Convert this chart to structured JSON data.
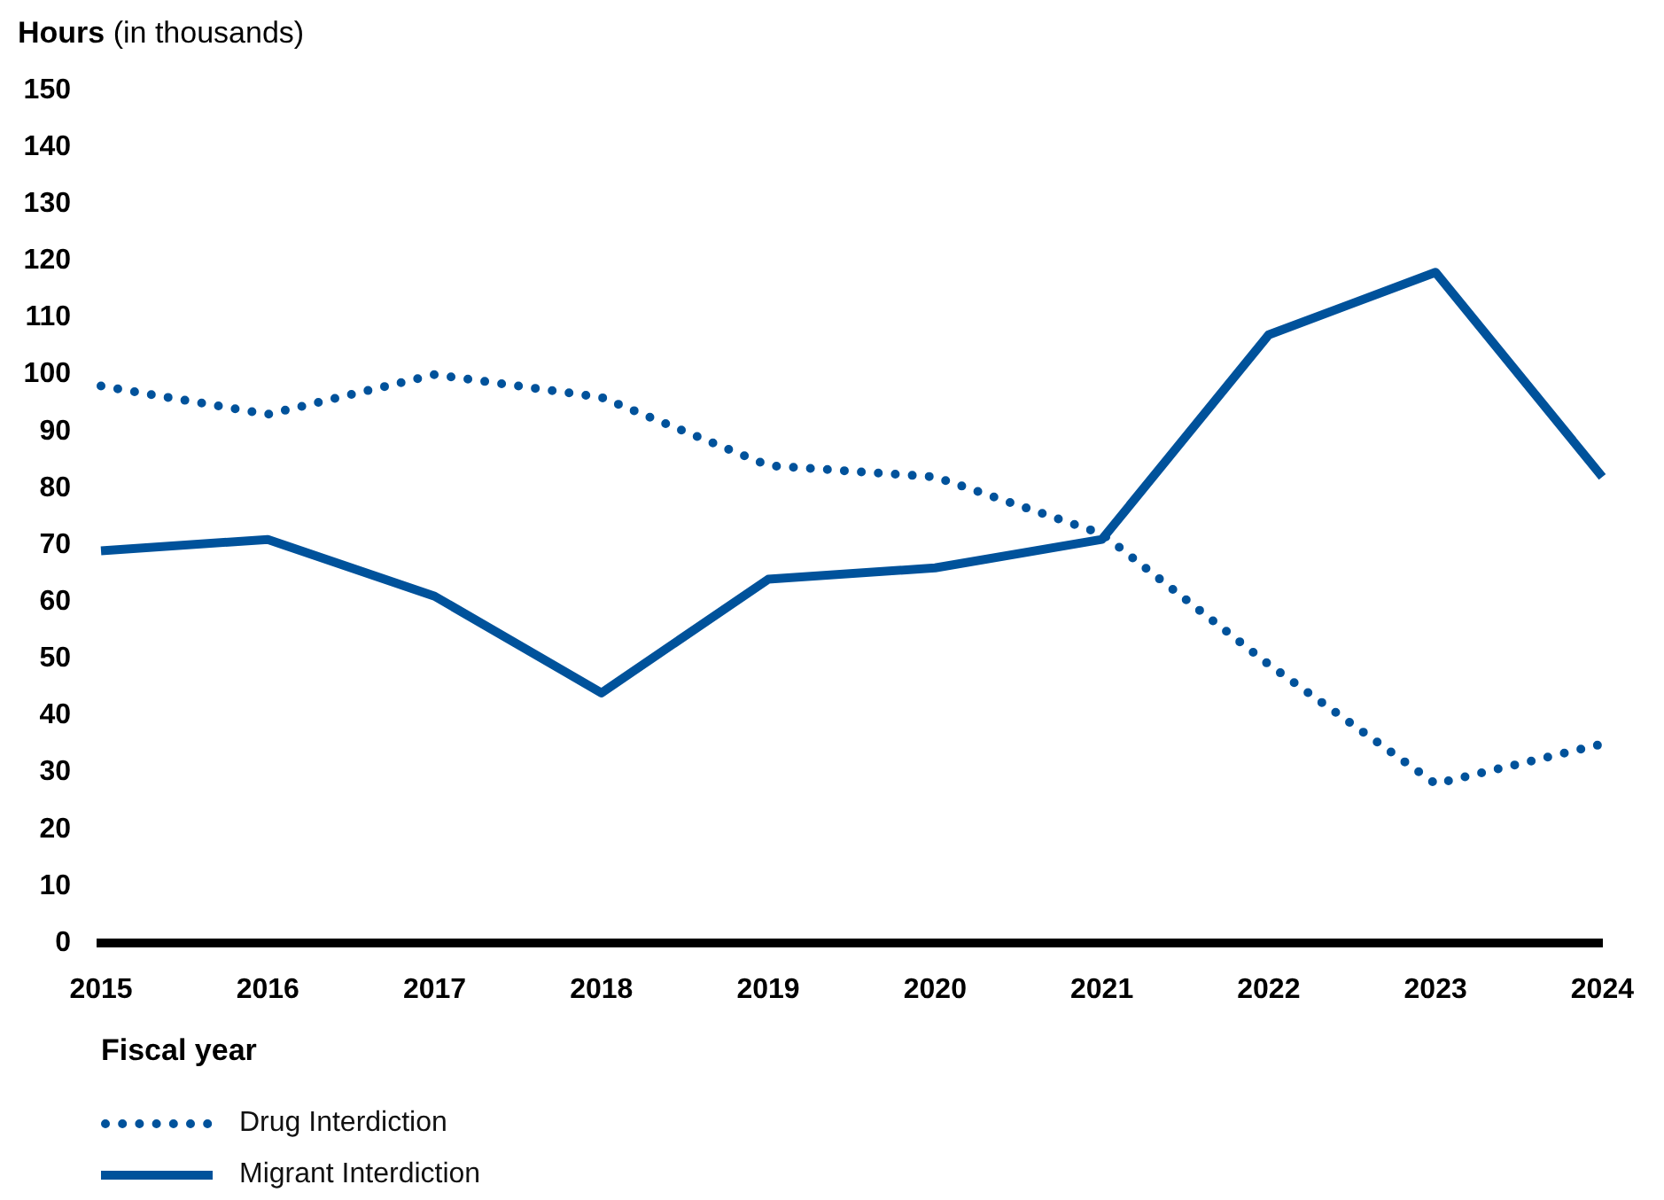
{
  "chart_data": {
    "type": "line",
    "ylabel": "Hours (in thousands)",
    "xlabel": "Fiscal year",
    "categories": [
      "2015",
      "2016",
      "2017",
      "2018",
      "2019",
      "2020",
      "2021",
      "2022",
      "2023",
      "2024"
    ],
    "series": [
      {
        "name": "Drug Interdiction",
        "color": "#00529b",
        "line_style": "dotted",
        "values": [
          98,
          93,
          100,
          96,
          84,
          82,
          72,
          49,
          28,
          35
        ]
      },
      {
        "name": "Migrant Interdiction",
        "color": "#00529b",
        "line_style": "solid",
        "values": [
          69,
          71,
          61,
          44,
          64,
          66,
          71,
          107,
          118,
          82
        ]
      }
    ],
    "ylim": [
      0,
      150
    ],
    "yticks": [
      0,
      10,
      20,
      30,
      40,
      50,
      60,
      70,
      80,
      90,
      100,
      110,
      120,
      130,
      140,
      150
    ],
    "legend": "bottom"
  }
}
